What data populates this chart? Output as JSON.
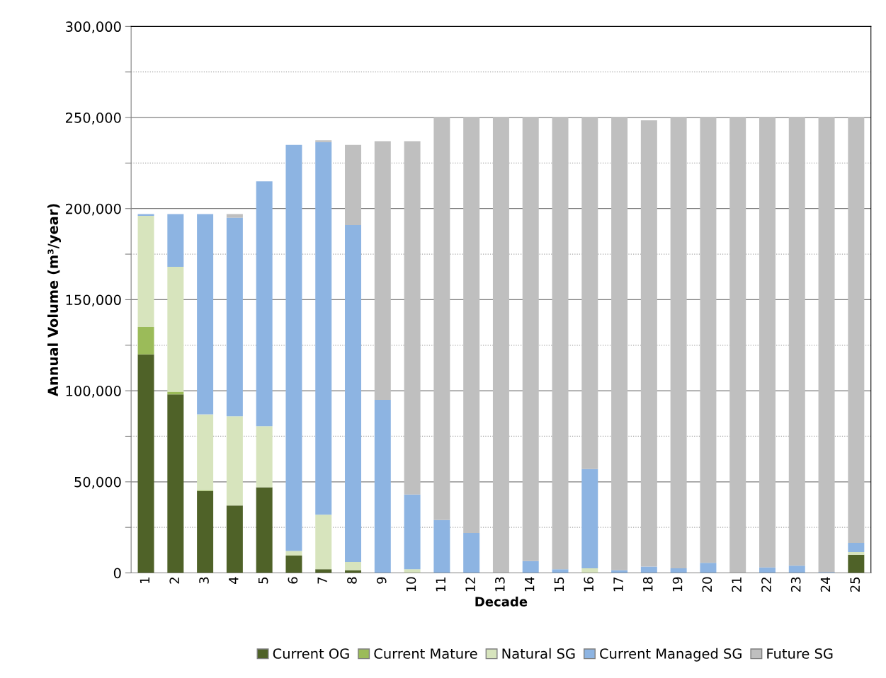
{
  "chart_data": {
    "type": "bar",
    "stacked": true,
    "xlabel": "Decade",
    "ylabel": "Annual Volume (m³/year)",
    "categories": [
      "1",
      "2",
      "3",
      "4",
      "5",
      "6",
      "7",
      "8",
      "9",
      "10",
      "11",
      "12",
      "13",
      "14",
      "15",
      "16",
      "17",
      "18",
      "19",
      "20",
      "21",
      "22",
      "23",
      "24",
      "25"
    ],
    "series": [
      {
        "name": "Current OG",
        "color": "#4f6228",
        "values": [
          120000,
          98000,
          45000,
          37000,
          47000,
          9500,
          2000,
          1500,
          0,
          0,
          0,
          0,
          0,
          0,
          0,
          0,
          0,
          0,
          0,
          0,
          0,
          0,
          0,
          0,
          10000
        ]
      },
      {
        "name": "Current Mature",
        "color": "#9bbb59",
        "values": [
          15000,
          1500,
          500,
          0,
          0,
          0,
          0,
          0,
          0,
          0,
          0,
          0,
          0,
          0,
          0,
          0,
          0,
          0,
          0,
          0,
          0,
          0,
          0,
          0,
          0
        ]
      },
      {
        "name": "Natural SG",
        "color": "#d7e4bd",
        "values": [
          61000,
          68500,
          41500,
          49000,
          33500,
          2500,
          30000,
          4500,
          0,
          2000,
          0,
          0,
          0,
          0,
          0,
          2500,
          0,
          0,
          0,
          0,
          0,
          0,
          0,
          0,
          1500
        ]
      },
      {
        "name": "Current Managed SG",
        "color": "#8db4e2",
        "values": [
          1000,
          29000,
          110000,
          109000,
          134500,
          223000,
          204500,
          185000,
          95000,
          41000,
          29000,
          22000,
          0,
          6500,
          2000,
          54500,
          1500,
          3500,
          2500,
          5500,
          0,
          3000,
          4000,
          500,
          5000
        ]
      },
      {
        "name": "Future SG",
        "color": "#bfbfbf",
        "values": [
          0,
          0,
          0,
          2000,
          0,
          0,
          1000,
          44000,
          142000,
          194000,
          221000,
          228000,
          250000,
          243500,
          248000,
          193000,
          248500,
          245000,
          247500,
          244500,
          250000,
          247000,
          246000,
          249500,
          233500
        ]
      }
    ],
    "ylim": [
      0,
      300000
    ],
    "yticks": [
      {
        "value": 0,
        "label": "0"
      },
      {
        "value": 25000,
        "label": null
      },
      {
        "value": 50000,
        "label": "50,000"
      },
      {
        "value": 75000,
        "label": null
      },
      {
        "value": 100000,
        "label": "100,000"
      },
      {
        "value": 125000,
        "label": null
      },
      {
        "value": 150000,
        "label": "150,000"
      },
      {
        "value": 175000,
        "label": null
      },
      {
        "value": 200000,
        "label": "200,000"
      },
      {
        "value": 225000,
        "label": null
      },
      {
        "value": 250000,
        "label": "250,000"
      },
      {
        "value": 275000,
        "label": null
      },
      {
        "value": 300000,
        "label": "300,000"
      }
    ],
    "grid": "y",
    "legend": "bottom"
  }
}
